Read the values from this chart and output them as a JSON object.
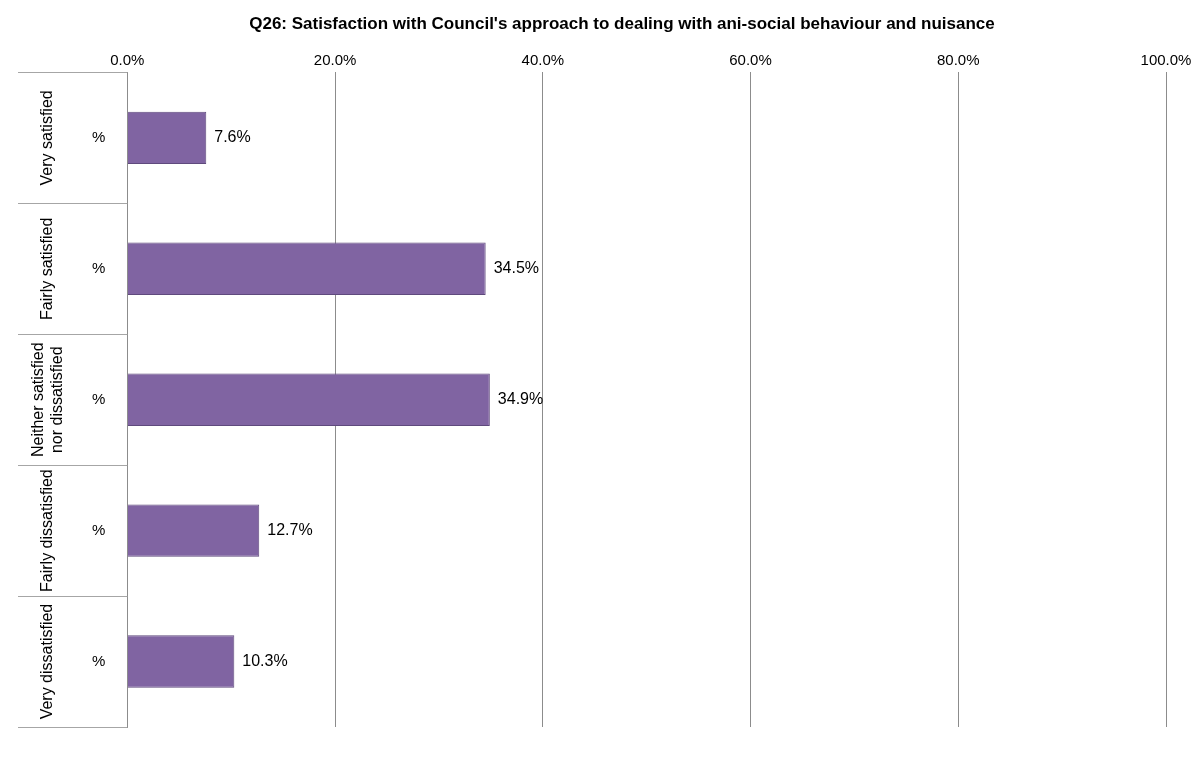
{
  "chart_data": {
    "type": "bar",
    "orientation": "horizontal",
    "title": "Q26: Satisfaction with Council's approach to dealing with ani-social behaviour and nuisance",
    "categories": [
      "%",
      "%",
      "%",
      "%",
      "%"
    ],
    "y2_categories": [
      "Very satisfied",
      "Fairly satisfied",
      "Neither satisfied nor dissatisfied",
      "Fairly dissatisfied",
      "Very dissatisfied"
    ],
    "values": [
      7.6,
      34.5,
      34.9,
      12.7,
      10.3
    ],
    "value_labels": [
      "7.6%",
      "34.5%",
      "34.9%",
      "12.7%",
      "10.3%"
    ],
    "color": "#8064a2",
    "xlim": [
      0,
      100
    ],
    "xticks": [
      {
        "value": 0,
        "label": "0.0%"
      },
      {
        "value": 20,
        "label": "20.0%"
      },
      {
        "value": 40,
        "label": "40.0%"
      },
      {
        "value": 60,
        "label": "60.0%"
      },
      {
        "value": 80,
        "label": "80.0%"
      },
      {
        "value": 100,
        "label": "100.0%"
      }
    ],
    "grid": "x",
    "legend": false
  }
}
